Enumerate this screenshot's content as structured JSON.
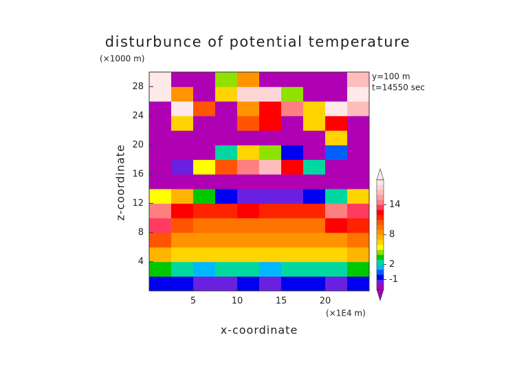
{
  "chart_data": {
    "type": "heatmap",
    "title": "disturbunce of potential temperature",
    "x_label": "x-coordinate",
    "y_label": "z-coordinate",
    "x_unit": "(×1E4 m)",
    "y_unit": "(×1000 m)",
    "annotations": [
      "y=100 m",
      "t=14550 sec"
    ],
    "xlim": [
      0,
      25
    ],
    "ylim": [
      0,
      30
    ],
    "xticks": [
      5,
      10,
      15,
      20
    ],
    "yticks": [
      4,
      8,
      12,
      16,
      20,
      24,
      28
    ],
    "x": [
      1.25,
      3.75,
      6.25,
      8.75,
      11.25,
      13.75,
      16.25,
      18.75,
      21.25,
      23.75
    ],
    "y": [
      1,
      3,
      5,
      7,
      9,
      11,
      13,
      15,
      17,
      19,
      21,
      23,
      25,
      27,
      29
    ],
    "values": [
      [
        -1,
        -1,
        -2,
        -2,
        -1,
        -2,
        -1,
        -1,
        -2,
        -1
      ],
      [
        3,
        2,
        1,
        2,
        2,
        1,
        2,
        2,
        2,
        3
      ],
      [
        7,
        6,
        6,
        6,
        6,
        6,
        6,
        6,
        6,
        7
      ],
      [
        10,
        8,
        8,
        8,
        8,
        8,
        8,
        8,
        8,
        9
      ],
      [
        13,
        10,
        9,
        9,
        9,
        9,
        9,
        9,
        12,
        11
      ],
      [
        14,
        12,
        11,
        11,
        12,
        11,
        11,
        11,
        14,
        13
      ],
      [
        5,
        7,
        3,
        -1,
        -2,
        -2,
        -2,
        -1,
        2,
        6
      ],
      [
        -3,
        -3,
        -3,
        -3,
        -3,
        -3,
        -3,
        -3,
        -3,
        -3
      ],
      [
        -3,
        -2,
        5,
        10,
        14,
        16,
        12,
        2,
        -3,
        -3
      ],
      [
        -3,
        -3,
        -3,
        2,
        6,
        4,
        -1,
        -3,
        0,
        -3
      ],
      [
        -3,
        -3,
        -3,
        -3,
        -3,
        -3,
        -3,
        -3,
        6,
        -3
      ],
      [
        -3,
        6,
        -3,
        -3,
        10,
        12,
        -3,
        6,
        12,
        -3
      ],
      [
        -3,
        18,
        10,
        -3,
        8,
        12,
        14,
        6,
        18,
        16
      ],
      [
        18,
        8,
        -3,
        6,
        17,
        17,
        4,
        -3,
        -3,
        18
      ],
      [
        18,
        -3,
        -3,
        4,
        8,
        -3,
        -3,
        -3,
        -3,
        16
      ]
    ],
    "contour_levels": [
      -3,
      -2,
      -1,
      0,
      1,
      2,
      3,
      4,
      5,
      6,
      7,
      8,
      9,
      10,
      11,
      12,
      13,
      14,
      15,
      16,
      17,
      18,
      19
    ],
    "colors": [
      "#b000b4",
      "#6a20e0",
      "#0000f0",
      "#0060ff",
      "#00b8ff",
      "#00d8a0",
      "#00c800",
      "#90e000",
      "#ffff00",
      "#ffd400",
      "#ffb400",
      "#ff9400",
      "#ff7400",
      "#ff5400",
      "#ff2400",
      "#ff0000",
      "#ff3c60",
      "#ff8080",
      "#ffa0a0",
      "#ffbcbc",
      "#ffd6d6",
      "#ffe8e8"
    ],
    "under_color": "#a000b8",
    "over_color": "#ffeaea",
    "colorbar_ticks": [
      -1,
      2,
      8,
      14
    ]
  }
}
